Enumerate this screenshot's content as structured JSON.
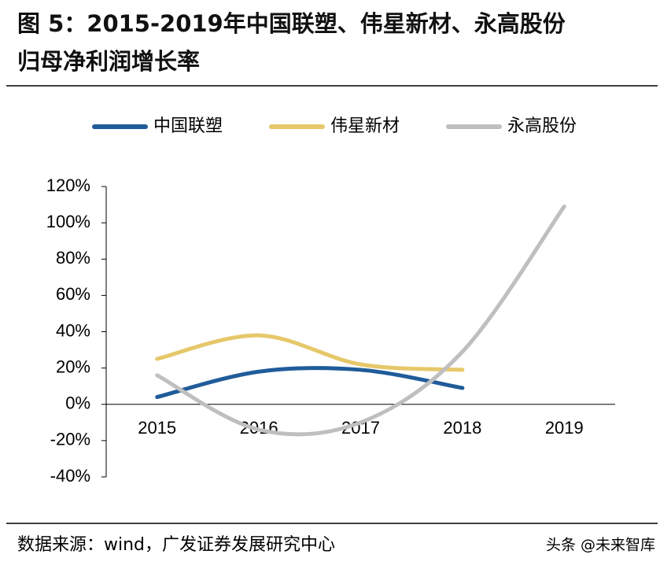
{
  "chart_data": {
    "type": "line",
    "title_lines": [
      "图 5：2015-2019年中国联塑、伟星新材、永高股份",
      "归母净利润增长率"
    ],
    "categories": [
      "2015",
      "2016",
      "2017",
      "2018",
      "2019"
    ],
    "series": [
      {
        "name": "中国联塑",
        "color": "#1f5c99",
        "values": [
          4,
          18,
          19,
          9,
          null
        ]
      },
      {
        "name": "伟星新材",
        "color": "#e6c86a",
        "values": [
          25,
          38,
          22,
          19,
          null
        ]
      },
      {
        "name": "永高股份",
        "color": "#bfbfbf",
        "values": [
          16,
          -14,
          -10,
          29,
          109
        ]
      }
    ],
    "ylim": [
      -40,
      120
    ],
    "yticks": [
      {
        "value": -40,
        "label": "-40%"
      },
      {
        "value": -20,
        "label": "-20%"
      },
      {
        "value": 0,
        "label": "0%"
      },
      {
        "value": 20,
        "label": "20%"
      },
      {
        "value": 40,
        "label": "40%"
      },
      {
        "value": 60,
        "label": "60%"
      },
      {
        "value": 80,
        "label": "80%"
      },
      {
        "value": 100,
        "label": "100%"
      },
      {
        "value": 120,
        "label": "120%"
      }
    ],
    "legend": "top",
    "source": "数据来源：wind，广发证券发展研究中心",
    "watermark": "头条 @未来智库"
  }
}
